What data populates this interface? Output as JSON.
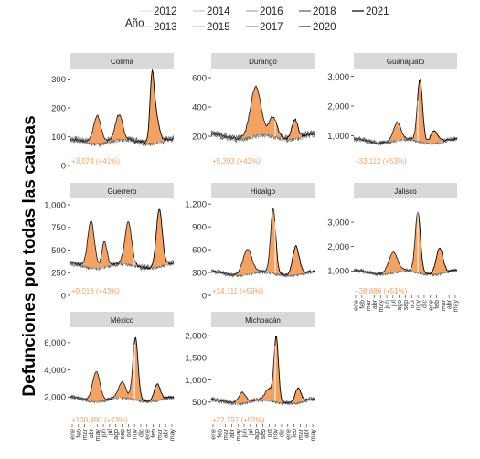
{
  "chart_data": {
    "type": "line",
    "ylabel": "Defunciones por todas las causas",
    "legend": {
      "title": "Año",
      "placement": "top",
      "years": [
        {
          "label": "2012",
          "color": "#e6e6e6"
        },
        {
          "label": "2013",
          "color": "#dadada"
        },
        {
          "label": "2014",
          "color": "#cccccc"
        },
        {
          "label": "2015",
          "color": "#bcbcbc"
        },
        {
          "label": "2016",
          "color": "#a8a8a8"
        },
        {
          "label": "2017",
          "color": "#8c8c8c"
        },
        {
          "label": "2018",
          "color": "#5c5c5c"
        },
        {
          "label": "2020",
          "color": "#262626"
        },
        {
          "label": "2021",
          "color": "#000000"
        }
      ]
    },
    "excess_fill_color": "#f4a261",
    "x_tick_labels": [
      "ene",
      "feb",
      "mar",
      "abr",
      "may",
      "jun",
      "jul",
      "ago",
      "sep",
      "oct",
      "nov",
      "dic",
      "ene",
      "feb",
      "mar",
      "abr",
      "may"
    ],
    "panels": [
      {
        "name": "Colima",
        "ylim": [
          0,
          330
        ],
        "yticks": [
          {
            "v": 0,
            "label": "0"
          },
          {
            "v": 100,
            "label": "100"
          },
          {
            "v": 200,
            "label": "200"
          },
          {
            "v": 300,
            "label": "300"
          }
        ],
        "baseline": 85,
        "noise": 7,
        "peaks": [
          [
            0.26,
            95,
            0.05
          ],
          [
            0.47,
            85,
            0.05
          ],
          [
            0.79,
            215,
            0.028
          ],
          [
            0.83,
            90,
            0.04
          ]
        ],
        "annotation": "+3,074 (+41%)"
      },
      {
        "name": "Durango",
        "ylim": [
          0,
          650
        ],
        "yticks": [
          {
            "v": 200,
            "label": "200"
          },
          {
            "v": 400,
            "label": "400"
          },
          {
            "v": 600,
            "label": "600"
          }
        ],
        "baseline": 200,
        "noise": 14,
        "peaks": [
          [
            0.43,
            330,
            0.07
          ],
          [
            0.6,
            130,
            0.05
          ],
          [
            0.81,
            130,
            0.04
          ]
        ],
        "annotation": "+5,393 (+42%)"
      },
      {
        "name": "Guanajuato",
        "ylim": [
          0,
          3200
        ],
        "yticks": [
          {
            "v": 1000,
            "label": "1,000"
          },
          {
            "v": 2000,
            "label": "2,000"
          },
          {
            "v": 3000,
            "label": "3,000"
          }
        ],
        "baseline": 830,
        "noise": 45,
        "peaks": [
          [
            0.42,
            580,
            0.05
          ],
          [
            0.64,
            2100,
            0.035
          ],
          [
            0.78,
            400,
            0.05
          ]
        ],
        "annotation": "+33,112 (+53%)"
      },
      {
        "name": "Guerrero",
        "ylim": [
          0,
          1050
        ],
        "yticks": [
          {
            "v": 0,
            "label": "0"
          },
          {
            "v": 250,
            "label": "250"
          },
          {
            "v": 500,
            "label": "500"
          },
          {
            "v": 750,
            "label": "750"
          },
          {
            "v": 1000,
            "label": "1,000"
          }
        ],
        "baseline": 330,
        "noise": 18,
        "peaks": [
          [
            0.2,
            520,
            0.045
          ],
          [
            0.33,
            280,
            0.035
          ],
          [
            0.56,
            460,
            0.045
          ],
          [
            0.86,
            630,
            0.04
          ]
        ],
        "annotation": "+9,016 (+43%)"
      },
      {
        "name": "Hidalgo",
        "ylim": [
          0,
          1250
        ],
        "yticks": [
          {
            "v": 0,
            "label": "0"
          },
          {
            "v": 300,
            "label": "300"
          },
          {
            "v": 600,
            "label": "600"
          },
          {
            "v": 900,
            "label": "900"
          },
          {
            "v": 1200,
            "label": "1,200"
          }
        ],
        "baseline": 290,
        "noise": 16,
        "peaks": [
          [
            0.35,
            330,
            0.06
          ],
          [
            0.6,
            850,
            0.035
          ],
          [
            0.82,
            370,
            0.045
          ]
        ],
        "annotation": "+14,111 (+59%)"
      },
      {
        "name": "Jalisco",
        "ylim": [
          0,
          3900
        ],
        "yticks": [
          {
            "v": 1000,
            "label": "1,000"
          },
          {
            "v": 2000,
            "label": "2,000"
          },
          {
            "v": 3000,
            "label": "3,000"
          }
        ],
        "baseline": 950,
        "noise": 45,
        "peaks": [
          [
            0.38,
            800,
            0.06
          ],
          [
            0.62,
            2500,
            0.035
          ],
          [
            0.83,
            1050,
            0.045
          ]
        ],
        "annotation": "+38,886 (+51%)"
      },
      {
        "name": "México",
        "ylim": [
          0,
          7000
        ],
        "yticks": [
          {
            "v": 2000,
            "label": "2,000"
          },
          {
            "v": 4000,
            "label": "4,000"
          },
          {
            "v": 6000,
            "label": "6,000"
          }
        ],
        "baseline": 1850,
        "noise": 80,
        "peaks": [
          [
            0.25,
            2200,
            0.05
          ],
          [
            0.5,
            1100,
            0.05
          ],
          [
            0.63,
            4600,
            0.035
          ],
          [
            0.84,
            1200,
            0.04
          ]
        ],
        "annotation": "+100,490 (+73%)"
      },
      {
        "name": "Michoacán",
        "ylim": [
          0,
          2150
        ],
        "yticks": [
          {
            "v": 500,
            "label": "500"
          },
          {
            "v": 1000,
            "label": "1,000"
          },
          {
            "v": 1500,
            "label": "1,500"
          },
          {
            "v": 2000,
            "label": "2,000"
          }
        ],
        "baseline": 520,
        "noise": 30,
        "peaks": [
          [
            0.3,
            230,
            0.05
          ],
          [
            0.56,
            250,
            0.05
          ],
          [
            0.63,
            1450,
            0.03
          ],
          [
            0.84,
            320,
            0.04
          ]
        ],
        "annotation": "+22,797 (+52%)"
      }
    ]
  }
}
